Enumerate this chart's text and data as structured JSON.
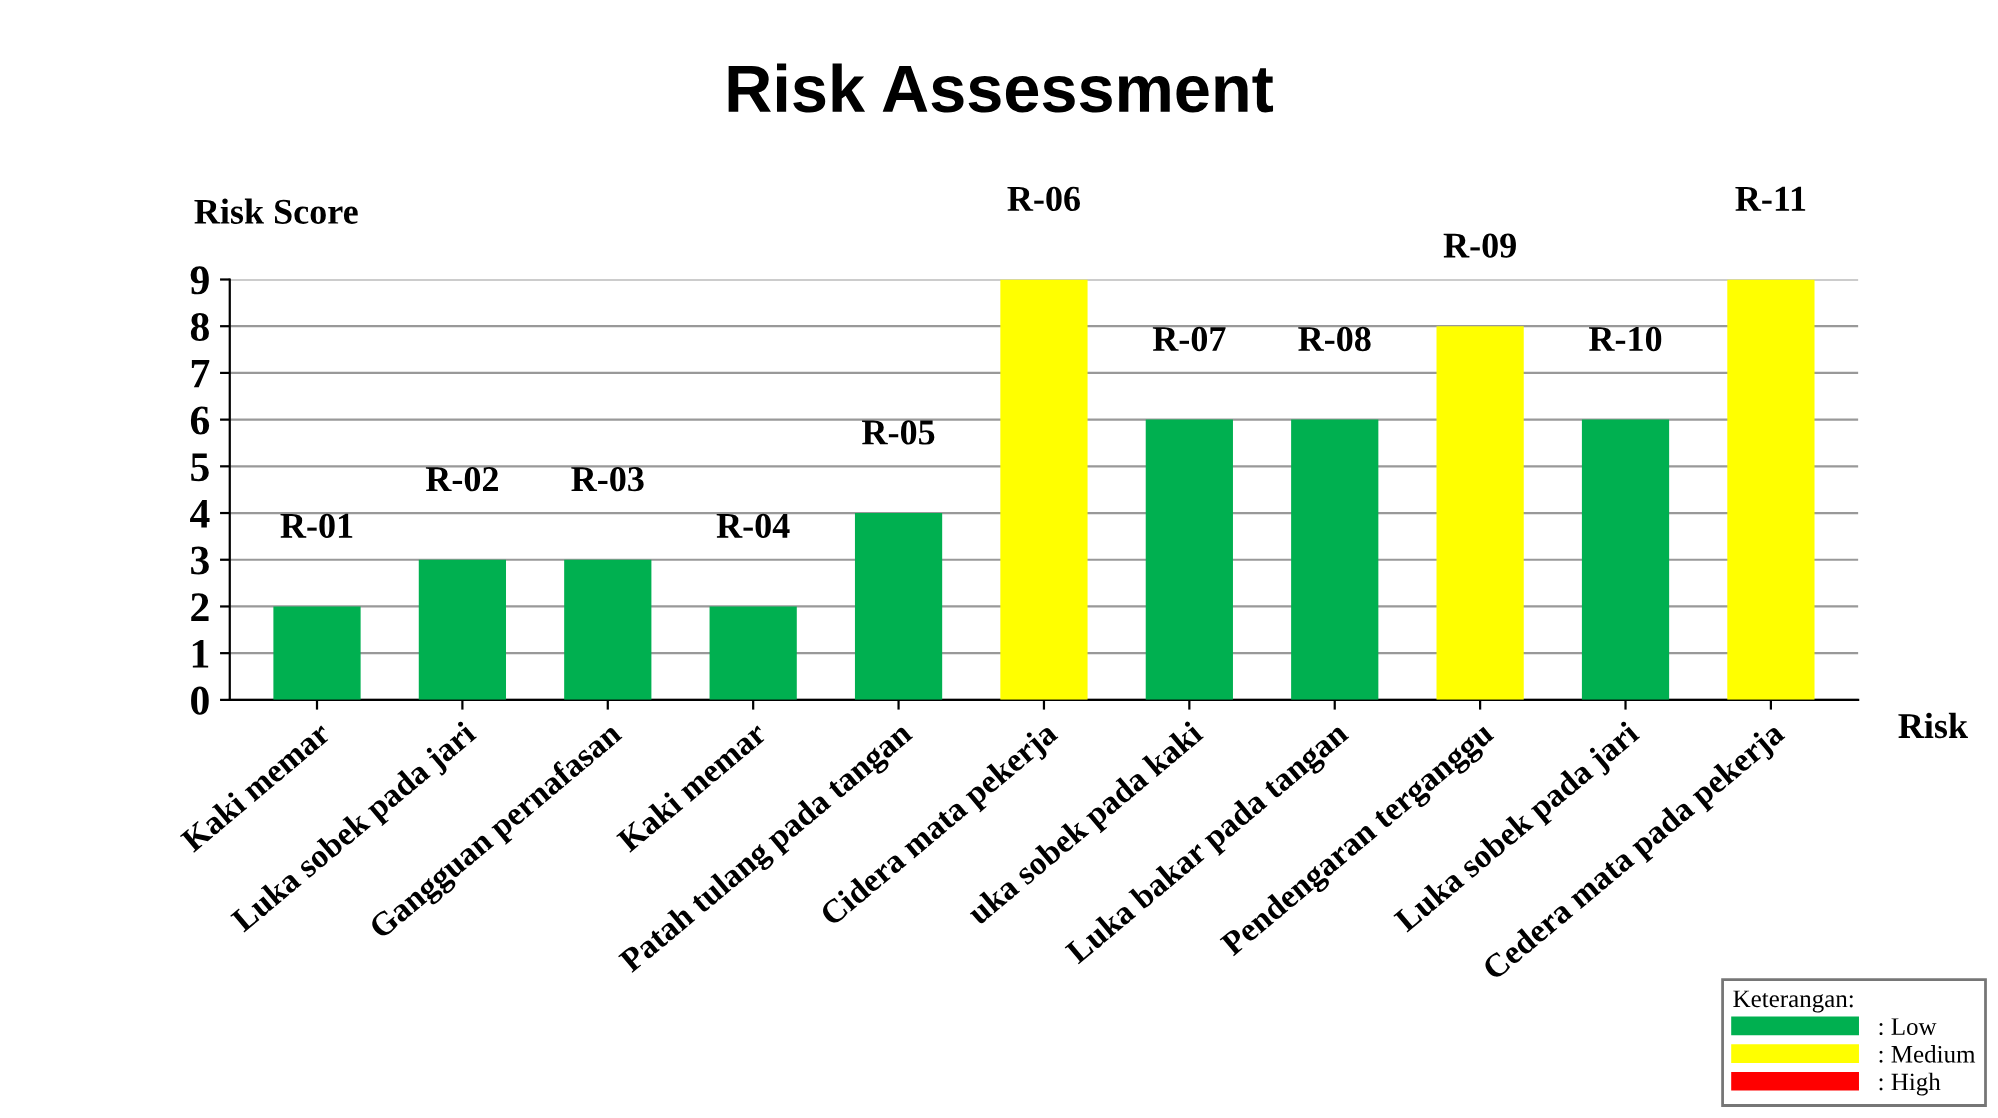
{
  "chart_data": {
    "type": "bar",
    "title": "Risk Assessment",
    "ylabel": "Risk Score",
    "xlabel": "Risk",
    "legend_title": "Keterangan:",
    "categories": [
      "Kaki memar",
      "Luka sobek pada jari",
      "Gangguan pernafasan",
      "Kaki memar",
      "Patah tulang pada tangan",
      "Cidera mata pekerja",
      "uka sobek pada kaki",
      "Luka bakar pada tangan",
      "Pendengaran terganggu",
      "Luka sobek pada jari",
      "Cedera mata pada pekerja"
    ],
    "series": [
      {
        "name": ": Low",
        "color": "#00b050",
        "values": [
          2,
          3,
          3,
          2,
          4,
          null,
          6,
          6,
          null,
          6,
          null
        ],
        "value_labels": [
          "R-01",
          "R-02",
          "R-03",
          "R-04",
          "R-05",
          null,
          "R-07",
          "R-08",
          null,
          "R-10",
          null
        ]
      },
      {
        "name": ": Medium",
        "color": "#ffff00",
        "values": [
          null,
          null,
          null,
          null,
          null,
          9,
          null,
          null,
          8,
          null,
          9
        ],
        "value_labels": [
          null,
          null,
          null,
          null,
          null,
          "R-06",
          null,
          null,
          "R-09",
          null,
          "R-11"
        ]
      },
      {
        "name": ": High",
        "color": "#ff0000",
        "values": [
          null,
          null,
          null,
          null,
          null,
          null,
          null,
          null,
          null,
          null,
          null
        ]
      }
    ],
    "ylim": [
      0,
      9
    ],
    "yticks": [
      0,
      1,
      2,
      3,
      4,
      5,
      6,
      7,
      8,
      9
    ],
    "grid": "y",
    "legend": "bottom right"
  }
}
